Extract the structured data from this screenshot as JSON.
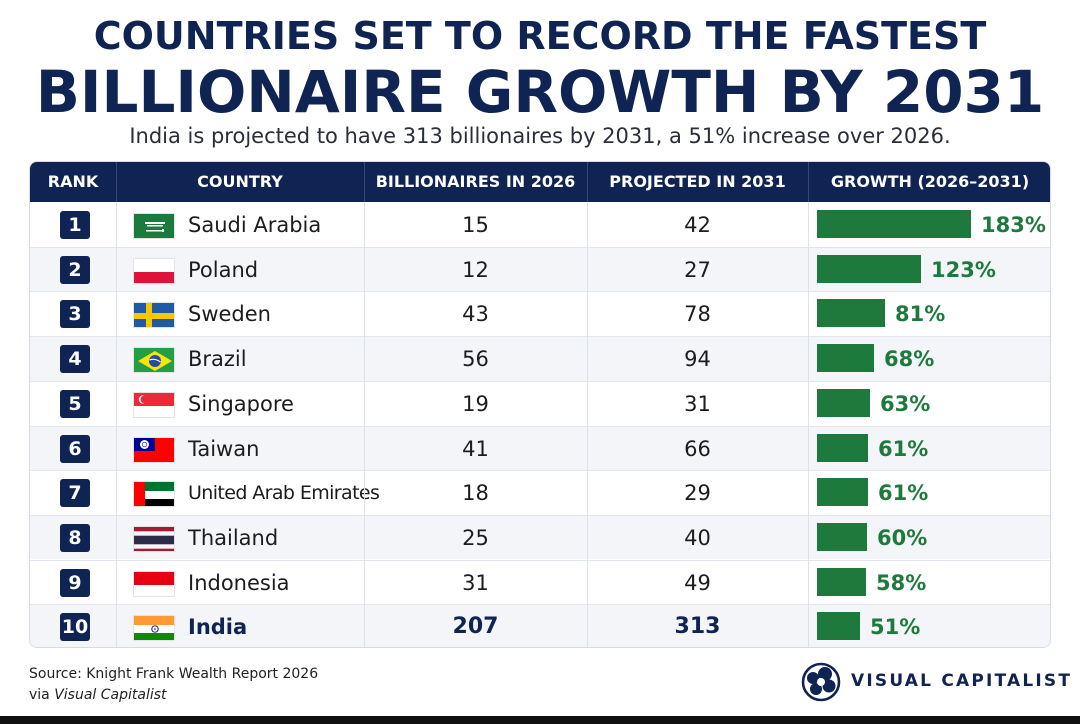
{
  "header": {
    "title_line1": "COUNTRIES SET TO RECORD THE FASTEST",
    "title_line2": "BILLIONAIRE GROWTH BY 2031",
    "subtitle": "India is projected to have 313 billionaires by 2031, a 51% increase over 2026."
  },
  "table": {
    "columns": [
      "RANK",
      "COUNTRY",
      "BILLIONAIRES IN 2026",
      "PROJECTED IN 2031",
      "GROWTH (2026–2031)"
    ]
  },
  "chart_data": {
    "type": "table",
    "title": "COUNTRIES SET TO RECORD THE FASTEST BILLIONAIRE GROWTH BY 2031",
    "subtitle": "India is projected to have 313 billionaires by 2031, a 51% increase over 2026.",
    "columns": [
      "RANK",
      "COUNTRY",
      "BILLIONAIRES IN 2026",
      "PROJECTED IN 2031",
      "GROWTH (2026–2031)"
    ],
    "growth_max": 183,
    "rows": [
      {
        "rank": "1",
        "country": "Saudi Arabia",
        "flag": "saudi-arabia",
        "b2026": "15",
        "b2031": "42",
        "growth": 183,
        "growth_label": "183%"
      },
      {
        "rank": "2",
        "country": "Poland",
        "flag": "poland",
        "b2026": "12",
        "b2031": "27",
        "growth": 123,
        "growth_label": "123%"
      },
      {
        "rank": "3",
        "country": "Sweden",
        "flag": "sweden",
        "b2026": "43",
        "b2031": "78",
        "growth": 81,
        "growth_label": "81%"
      },
      {
        "rank": "4",
        "country": "Brazil",
        "flag": "brazil",
        "b2026": "56",
        "b2031": "94",
        "growth": 68,
        "growth_label": "68%"
      },
      {
        "rank": "5",
        "country": "Singapore",
        "flag": "singapore",
        "b2026": "19",
        "b2031": "31",
        "growth": 63,
        "growth_label": "63%"
      },
      {
        "rank": "6",
        "country": "Taiwan",
        "flag": "taiwan",
        "b2026": "41",
        "b2031": "66",
        "growth": 61,
        "growth_label": "61%"
      },
      {
        "rank": "7",
        "country": "United Arab Emirates",
        "flag": "uae",
        "b2026": "18",
        "b2031": "29",
        "growth": 61,
        "growth_label": "61%"
      },
      {
        "rank": "8",
        "country": "Thailand",
        "flag": "thailand",
        "b2026": "25",
        "b2031": "40",
        "growth": 60,
        "growth_label": "60%"
      },
      {
        "rank": "9",
        "country": "Indonesia",
        "flag": "indonesia",
        "b2026": "31",
        "b2031": "49",
        "growth": 58,
        "growth_label": "58%"
      },
      {
        "rank": "10",
        "country": "India",
        "flag": "india",
        "b2026": "207",
        "b2031": "313",
        "growth": 51,
        "growth_label": "51%",
        "highlight": true
      }
    ]
  },
  "colors": {
    "navy": "#0f2452",
    "bar_green": "#1e7a3c",
    "row_alt": "#f3f5f9"
  },
  "footer": {
    "source_line": "Source: Knight Frank Wealth Report 2026",
    "via_prefix": "via ",
    "via_name": "Visual Capitalist",
    "logo_text": "VISUAL CAPITALIST",
    "logo_icon": "visual-capitalist-logo-icon"
  }
}
